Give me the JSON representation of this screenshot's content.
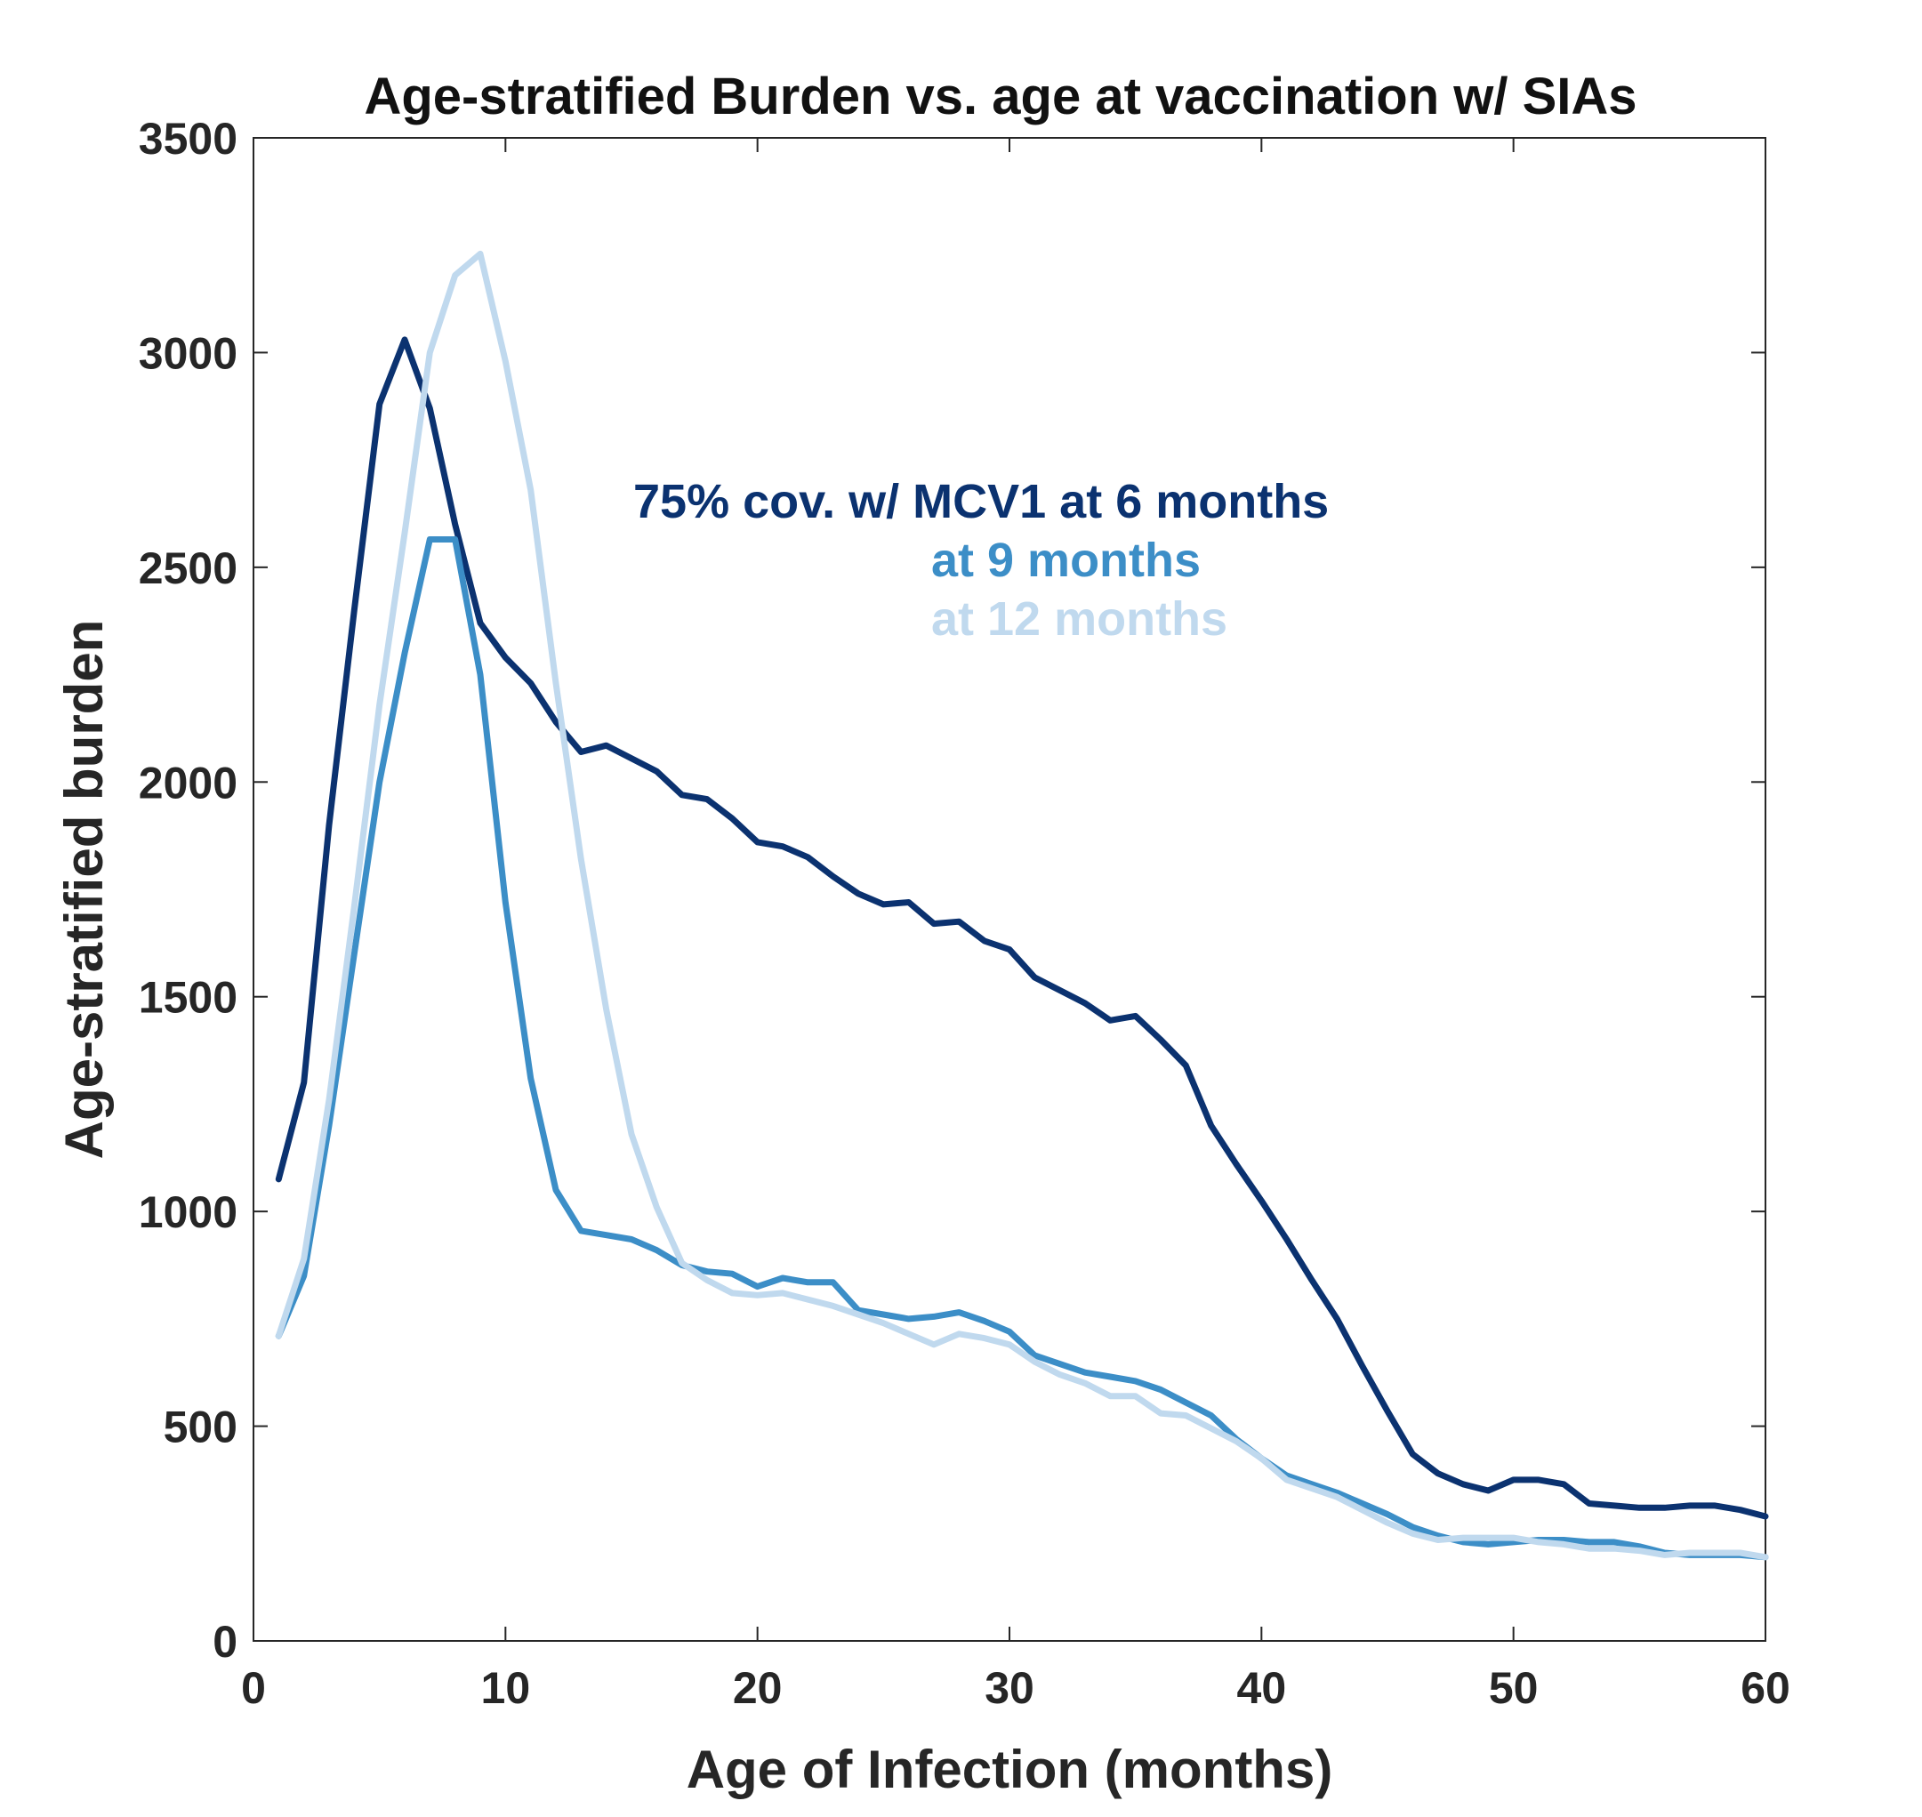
{
  "chart_data": {
    "type": "line",
    "title": "Age-stratified Burden vs. age at vaccination w/ SIAs",
    "xlabel": "Age of Infection (months)",
    "ylabel": "Age-stratified burden",
    "xlim": [
      0,
      60
    ],
    "ylim": [
      0,
      3500
    ],
    "xticks": [
      0,
      10,
      20,
      30,
      40,
      50,
      60
    ],
    "yticks": [
      0,
      500,
      1000,
      1500,
      2000,
      2500,
      3000,
      3500
    ],
    "grid": false,
    "annotations": [
      {
        "text": "75% cov. w/ MCV1 at 6 months",
        "color": "#0b3270"
      },
      {
        "text": "at 9 months",
        "color": "#3c8ec7"
      },
      {
        "text": "at 12 months",
        "color": "#c0d9ee"
      }
    ],
    "series": [
      {
        "color": "#0b3270",
        "x": [
          1,
          2,
          3,
          4,
          5,
          6,
          7,
          8,
          9,
          10,
          11,
          12,
          13,
          14,
          15,
          16,
          17,
          18,
          19,
          20,
          21,
          22,
          23,
          24,
          25,
          26,
          27,
          28,
          29,
          30,
          31,
          32,
          33,
          34,
          35,
          36,
          37,
          38,
          39,
          40,
          41,
          42,
          43,
          44,
          45,
          46,
          47,
          48,
          49,
          50,
          51,
          52,
          53,
          54,
          55,
          56,
          57,
          58,
          59,
          60
        ],
        "y": [
          1075,
          1300,
          1900,
          2400,
          2880,
          3030,
          2870,
          2600,
          2370,
          2290,
          2230,
          2140,
          2070,
          2085,
          2055,
          2025,
          1970,
          1960,
          1915,
          1860,
          1850,
          1825,
          1780,
          1740,
          1715,
          1720,
          1670,
          1675,
          1630,
          1610,
          1545,
          1515,
          1485,
          1445,
          1455,
          1400,
          1340,
          1200,
          1110,
          1025,
          935,
          840,
          750,
          640,
          535,
          435,
          390,
          365,
          350,
          375,
          375,
          365,
          320,
          315,
          310,
          310,
          315,
          315,
          305,
          290
        ]
      },
      {
        "color": "#3c8ec7",
        "x": [
          1,
          2,
          3,
          4,
          5,
          6,
          7,
          8,
          9,
          10,
          11,
          12,
          13,
          14,
          15,
          16,
          17,
          18,
          19,
          20,
          21,
          22,
          23,
          24,
          25,
          26,
          27,
          28,
          29,
          30,
          31,
          32,
          33,
          34,
          35,
          36,
          37,
          38,
          39,
          40,
          41,
          42,
          43,
          44,
          45,
          46,
          47,
          48,
          49,
          50,
          51,
          52,
          53,
          54,
          55,
          56,
          57,
          58,
          59,
          60
        ],
        "y": [
          710,
          850,
          1200,
          1600,
          2000,
          2300,
          2565,
          2565,
          2250,
          1720,
          1310,
          1050,
          955,
          945,
          935,
          910,
          875,
          860,
          855,
          825,
          845,
          835,
          835,
          770,
          760,
          750,
          755,
          765,
          745,
          720,
          665,
          645,
          625,
          615,
          605,
          585,
          555,
          525,
          470,
          425,
          385,
          365,
          345,
          320,
          295,
          265,
          245,
          230,
          225,
          230,
          235,
          235,
          230,
          230,
          220,
          205,
          200,
          200,
          200,
          195
        ]
      },
      {
        "color": "#c0d9ee",
        "x": [
          1,
          2,
          3,
          4,
          5,
          6,
          7,
          8,
          9,
          10,
          11,
          12,
          13,
          14,
          15,
          16,
          17,
          18,
          19,
          20,
          21,
          22,
          23,
          24,
          25,
          26,
          27,
          28,
          29,
          30,
          31,
          32,
          33,
          34,
          35,
          36,
          37,
          38,
          39,
          40,
          41,
          42,
          43,
          44,
          45,
          46,
          47,
          48,
          49,
          50,
          51,
          52,
          53,
          54,
          55,
          56,
          57,
          58,
          59,
          60
        ],
        "y": [
          710,
          890,
          1260,
          1710,
          2180,
          2580,
          3000,
          3180,
          3230,
          2980,
          2680,
          2230,
          1820,
          1470,
          1180,
          1010,
          880,
          840,
          810,
          805,
          810,
          795,
          780,
          760,
          740,
          715,
          690,
          715,
          705,
          690,
          650,
          620,
          600,
          570,
          570,
          530,
          525,
          495,
          465,
          425,
          375,
          355,
          335,
          305,
          275,
          250,
          235,
          240,
          240,
          240,
          230,
          225,
          215,
          215,
          210,
          200,
          205,
          205,
          205,
          195
        ]
      }
    ]
  }
}
